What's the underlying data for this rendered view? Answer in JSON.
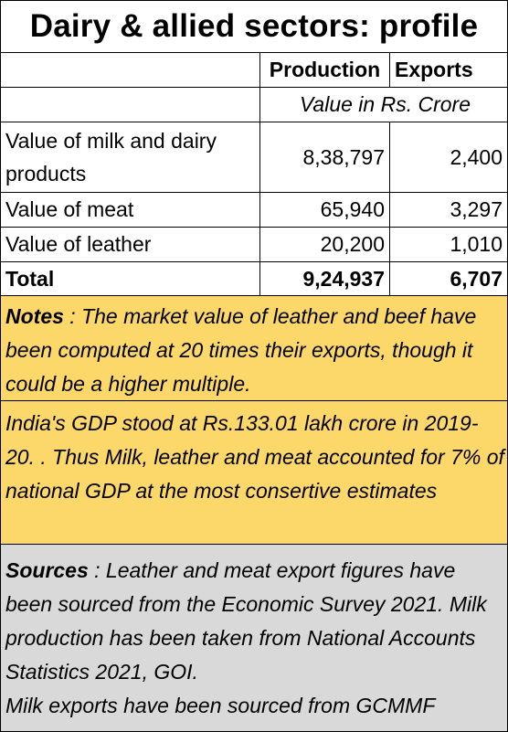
{
  "title": "Dairy & allied sectors: profile",
  "columns": {
    "production": "Production",
    "exports": "Exports"
  },
  "units": "Value in Rs. Crore",
  "rows": [
    {
      "label_line1": "Value of milk and  dairy",
      "label_line2": "products",
      "production": "8,38,797",
      "exports": "2,400"
    },
    {
      "label": "Value of meat",
      "production": "65,940",
      "exports": "3,297"
    },
    {
      "label": "Value of leather",
      "production": "20,200",
      "exports": "1,010"
    }
  ],
  "total": {
    "label": "Total",
    "production": "9,24,937",
    "exports": "6,707"
  },
  "notes": {
    "label": "Notes",
    "text": " : The market value of leather and beef have been computed at 20 times their exports, though it could be a higher multiple."
  },
  "gdp": {
    "text": "India's GDP stood at Rs.133.01 lakh crore in 2019-20. . Thus Milk, leather and meat accounted for 7% of national GDP at the most consertive estimates"
  },
  "sources": {
    "label": "Sources",
    "text": " : Leather and meat export figures have been sourced from the Economic Survey 2021. Milk production has been taken from National Accounts Statistics 2021, GOI.",
    "line2": "Milk exports have been sourced from GCMMF"
  },
  "colors": {
    "note_fill": "#fcd86a",
    "source_fill": "#d9d9d9"
  }
}
